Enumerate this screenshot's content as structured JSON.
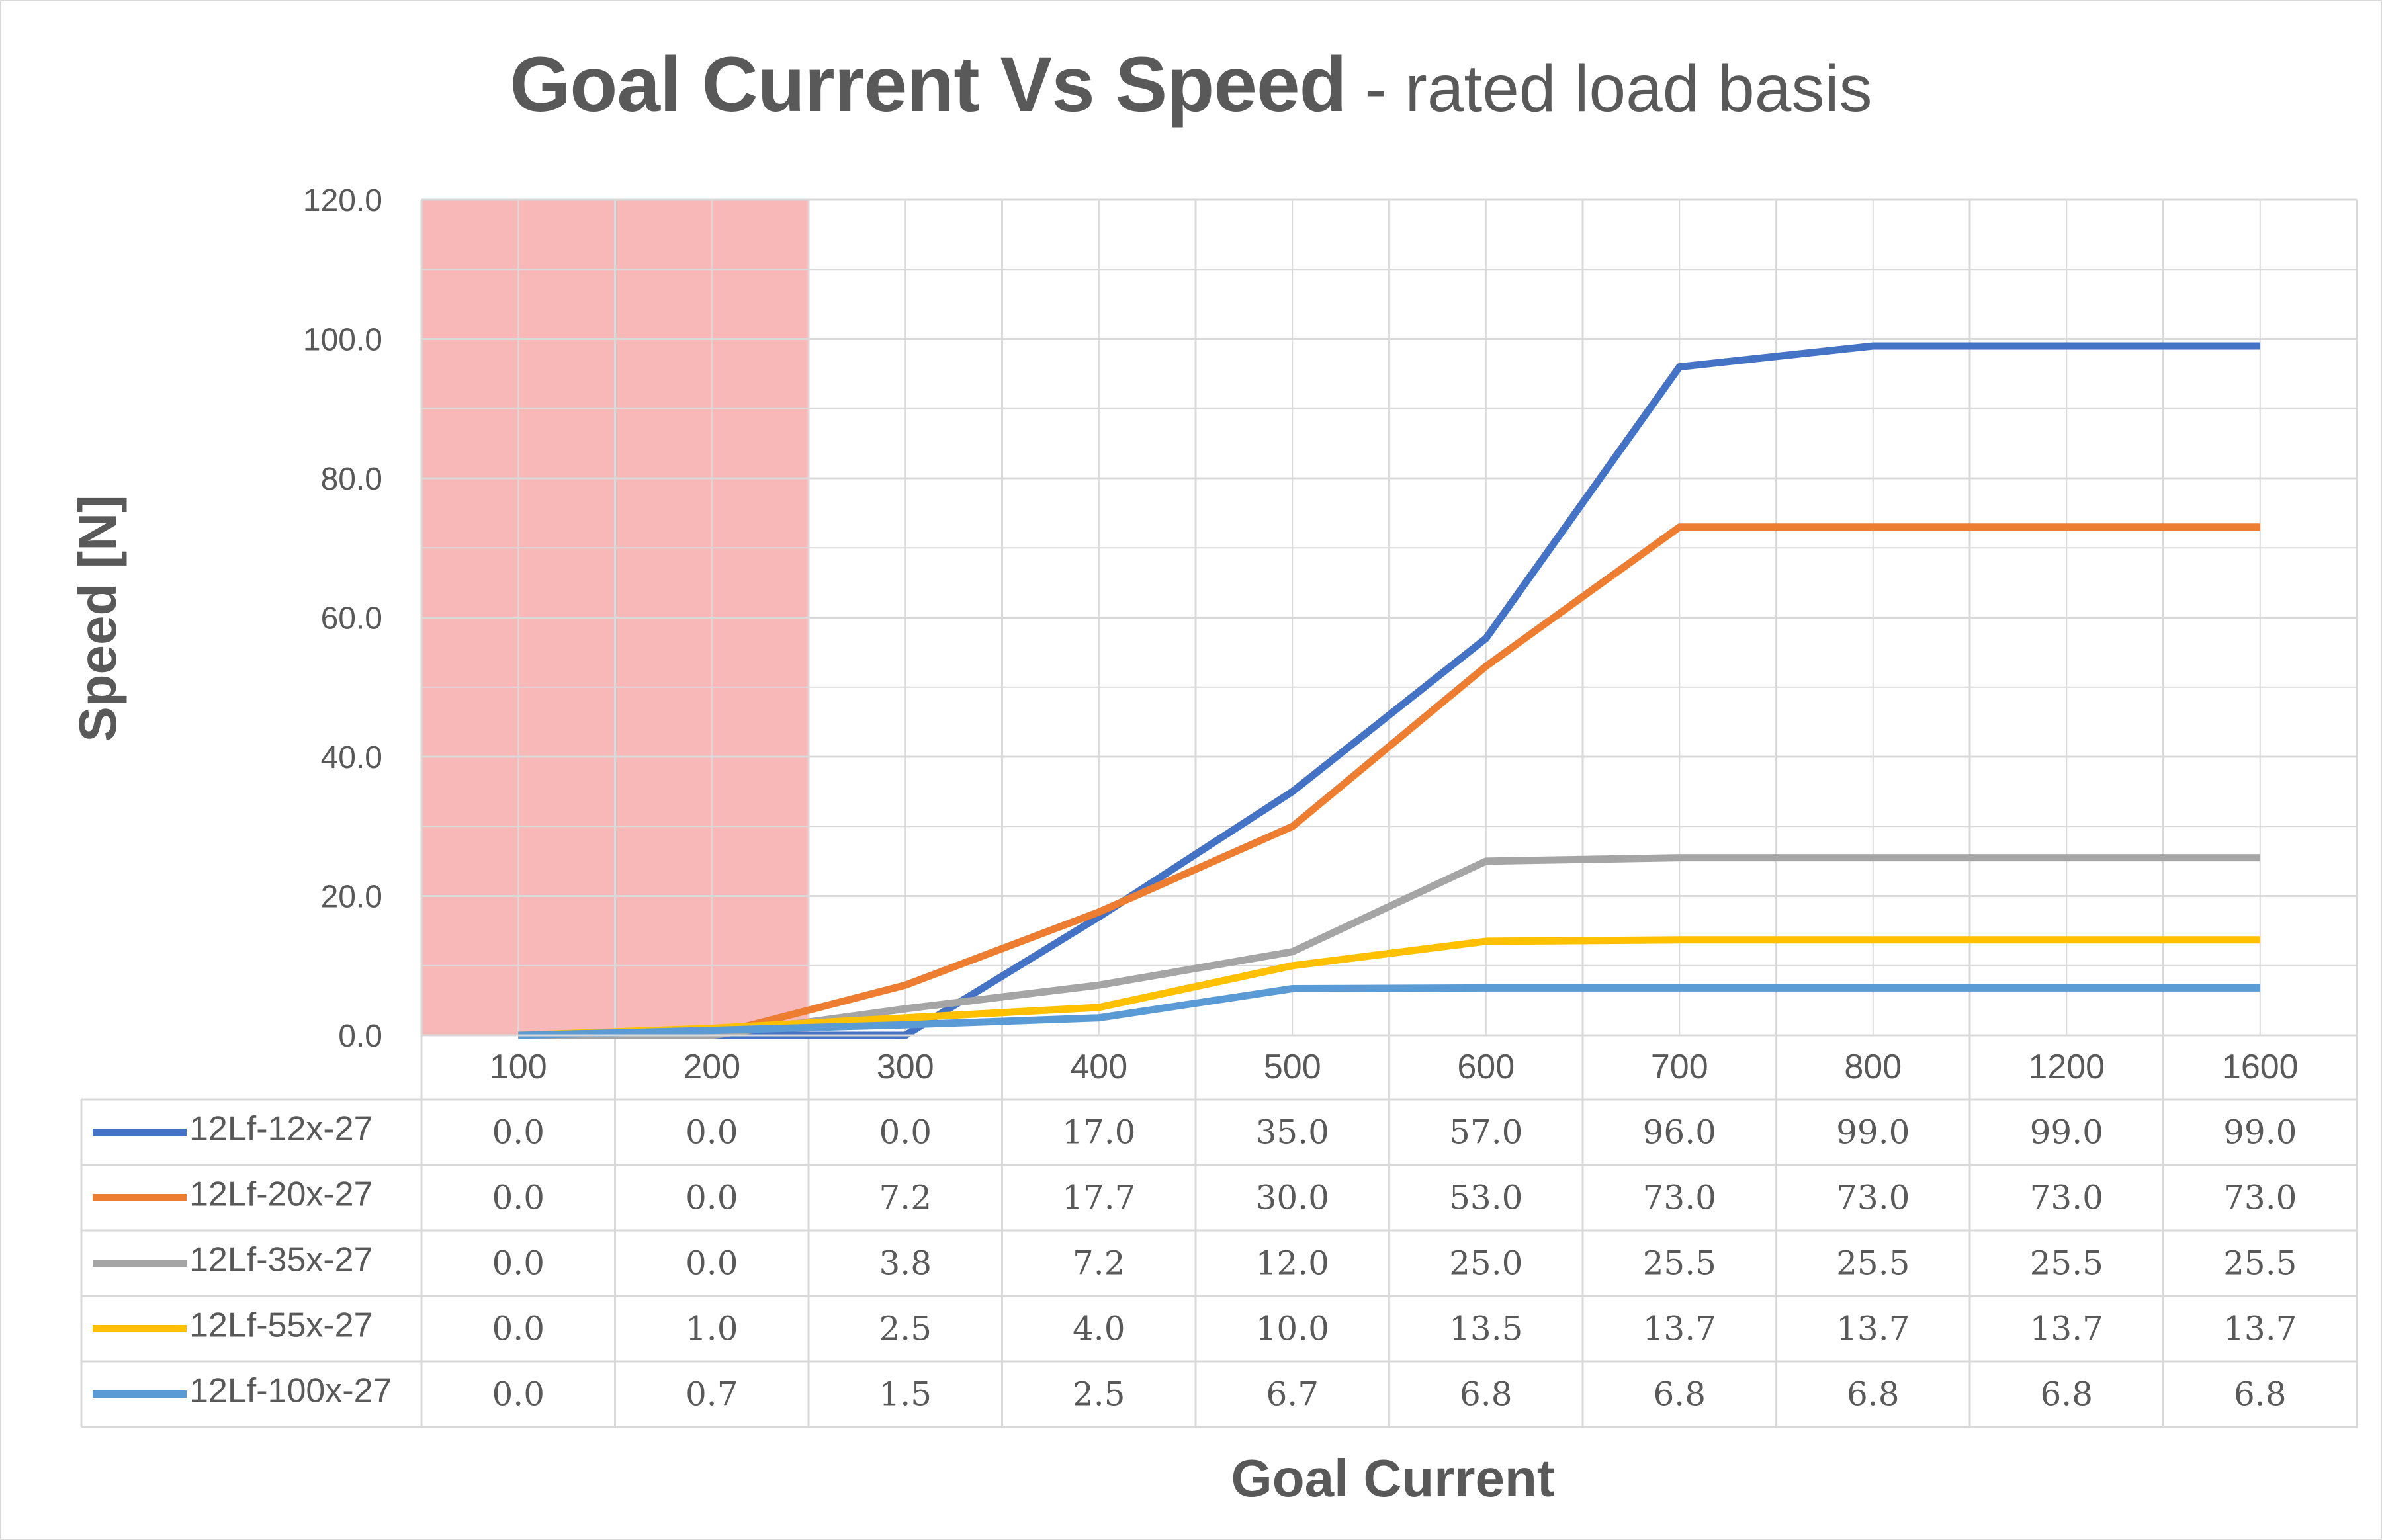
{
  "title": {
    "main": "Goal Current Vs Speed",
    "sub": " - rated load basis"
  },
  "colors": {
    "shaded_region": "#f8b4b4",
    "grid": "#d9d9d9",
    "text": "#595959"
  },
  "chart_data": {
    "type": "line",
    "title": "Goal Current Vs Speed - rated load basis",
    "xlabel": "Goal Current",
    "ylabel": "Speed [N]",
    "categories": [
      "100",
      "200",
      "300",
      "400",
      "500",
      "600",
      "700",
      "800",
      "1200",
      "1600"
    ],
    "ylim": [
      0,
      120
    ],
    "yticks": [
      "0.0",
      "20.0",
      "40.0",
      "60.0",
      "80.0",
      "100.0",
      "120.0"
    ],
    "grid": true,
    "legend": "data-table",
    "shaded_categories": [
      "100",
      "200"
    ],
    "series": [
      {
        "name": "12Lf-12x-27",
        "color": "#4472c4",
        "values": [
          0.0,
          0.0,
          0.0,
          17.0,
          35.0,
          57.0,
          96.0,
          99.0,
          99.0,
          99.0
        ],
        "labels": [
          "0.0",
          "0.0",
          "0.0",
          "17.0",
          "35.0",
          "57.0",
          "96.0",
          "99.0",
          "99.0",
          "99.0"
        ]
      },
      {
        "name": "12Lf-20x-27",
        "color": "#ed7d31",
        "values": [
          0.0,
          0.0,
          7.2,
          17.7,
          30.0,
          53.0,
          73.0,
          73.0,
          73.0,
          73.0
        ],
        "labels": [
          "0.0",
          "0.0",
          "7.2",
          "17.7",
          "30.0",
          "53.0",
          "73.0",
          "73.0",
          "73.0",
          "73.0"
        ]
      },
      {
        "name": "12Lf-35x-27",
        "color": "#a5a5a5",
        "values": [
          0.0,
          0.0,
          3.8,
          7.2,
          12.0,
          25.0,
          25.5,
          25.5,
          25.5,
          25.5
        ],
        "labels": [
          "0.0",
          "0.0",
          "3.8",
          "7.2",
          "12.0",
          "25.0",
          "25.5",
          "25.5",
          "25.5",
          "25.5"
        ]
      },
      {
        "name": "12Lf-55x-27",
        "color": "#ffc000",
        "values": [
          0.0,
          1.0,
          2.5,
          4.0,
          10.0,
          13.5,
          13.7,
          13.7,
          13.7,
          13.7
        ],
        "labels": [
          "0.0",
          "1.0",
          "2.5",
          "4.0",
          "10.0",
          "13.5",
          "13.7",
          "13.7",
          "13.7",
          "13.7"
        ]
      },
      {
        "name": "12Lf-100x-27",
        "color": "#5b9bd5",
        "values": [
          0.0,
          0.7,
          1.5,
          2.5,
          6.7,
          6.8,
          6.8,
          6.8,
          6.8,
          6.8
        ],
        "labels": [
          "0.0",
          "0.7",
          "1.5",
          "2.5",
          "6.7",
          "6.8",
          "6.8",
          "6.8",
          "6.8",
          "6.8"
        ]
      }
    ]
  }
}
